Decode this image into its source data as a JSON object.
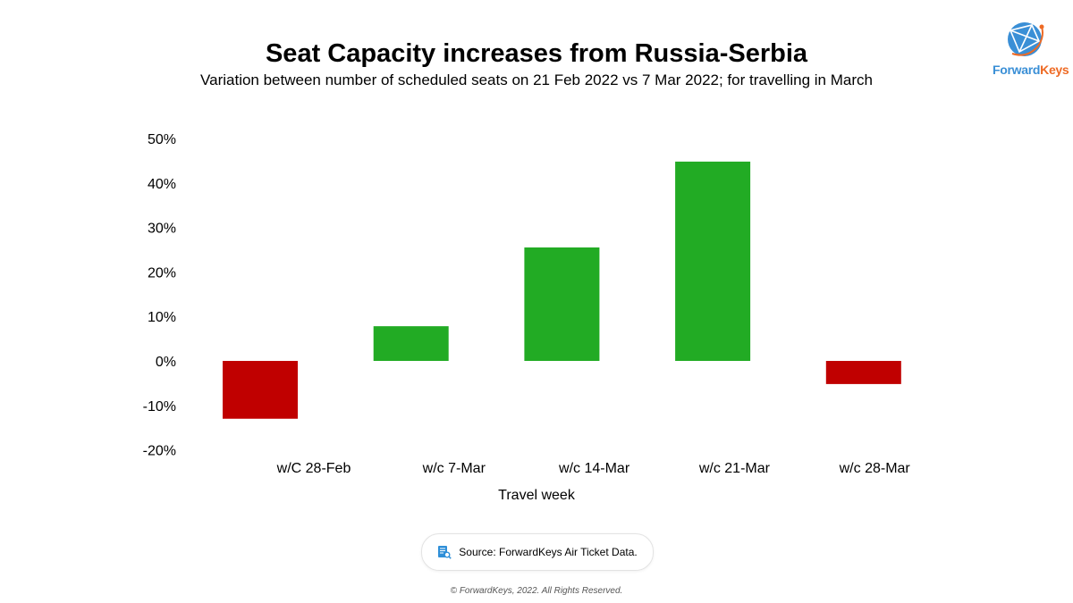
{
  "header": {
    "title": "Seat Capacity increases from Russia-Serbia",
    "subtitle": "Variation between number of scheduled seats on 21 Feb 2022 vs 7 Mar 2022; for travelling in March"
  },
  "logo": {
    "part1": "Forward",
    "part2": "Keys",
    "icon": "globe-icon"
  },
  "colors": {
    "positive": "#22ab24",
    "negative": "#c00000",
    "logo_blue": "#3a8fd6",
    "logo_orange": "#ee6a24"
  },
  "chart_data": {
    "type": "bar",
    "title": "Seat Capacity increases from Russia-Serbia",
    "subtitle": "Variation between number of scheduled seats on 21 Feb 2022 vs 7 Mar 2022; for travelling in March",
    "categories": [
      "w/C 28-Feb",
      "w/c 7-Mar",
      "w/c 14-Mar",
      "w/c 21-Mar",
      "w/c 28-Mar"
    ],
    "values": [
      -13,
      7.8,
      25.5,
      44.8,
      -5.2
    ],
    "xlabel": "Travel week",
    "ylabel": "",
    "ylim": [
      -20,
      50
    ],
    "yticks": [
      -20,
      -10,
      0,
      10,
      20,
      30,
      40,
      50
    ],
    "ytick_labels": [
      "-20%",
      "-10%",
      "0%",
      "10%",
      "20%",
      "30%",
      "40%",
      "50%"
    ],
    "grid": false,
    "legend": "none"
  },
  "footer": {
    "source": "Source: ForwardKeys Air Ticket Data.",
    "source_icon": "document-search-icon",
    "copyright": "© ForwardKeys, 2022. All Rights Reserved."
  }
}
